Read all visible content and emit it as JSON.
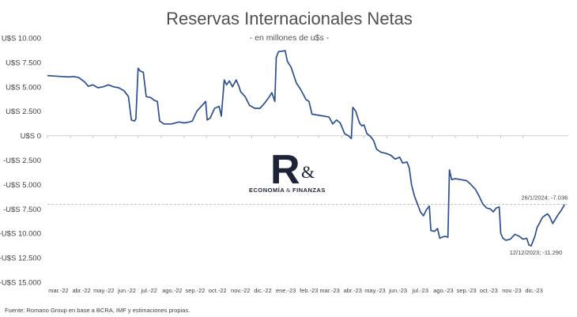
{
  "chart_data": {
    "type": "line",
    "title": "Reservas Internacionales Netas",
    "subtitle": "- en millones de u$s -",
    "xlabel": "",
    "ylabel": "",
    "ylim": [
      -15000,
      10000
    ],
    "y_ticks": [
      10000,
      7500,
      5000,
      2500,
      0,
      -2500,
      -5000,
      -7500,
      -10000,
      -12500,
      -15000
    ],
    "y_tick_labels": [
      "U$S 10.000",
      "U$S 7.500",
      "U$S 5.000",
      "U$S 2.500",
      "U$S 0",
      "-U$S 2.500",
      "-U$S 5.000",
      "-U$S 7.500",
      "-U$S 10.000",
      "-U$S 12.500",
      "-U$S 15.000"
    ],
    "x_range": [
      "2022-03-01",
      "2024-01-31"
    ],
    "x_tick_dates": [
      "2022-03-01",
      "2022-04-01",
      "2022-05-01",
      "2022-06-01",
      "2022-07-01",
      "2022-08-01",
      "2022-09-01",
      "2022-10-01",
      "2022-11-01",
      "2022-12-01",
      "2023-01-01",
      "2023-02-01",
      "2023-03-01",
      "2023-04-01",
      "2023-05-01",
      "2023-06-01",
      "2023-07-01",
      "2023-08-01",
      "2023-09-01",
      "2023-10-01",
      "2023-11-01",
      "2023-12-01"
    ],
    "x_tick_labels": [
      "mar.-22",
      "abr.-22",
      "may.-22",
      "jun.-22",
      "jul.-22",
      "ago.-22",
      "sep.-22",
      "oct.-22",
      "nov.-22",
      "dic.-22",
      "ene.-23",
      "feb.-23",
      "mar.-23",
      "abr.-23",
      "may.-23",
      "jun.-23",
      "jul.-23",
      "ago.-23",
      "sep.-23",
      "oct.-23",
      "nov.-23",
      "dic.-23"
    ],
    "grid": false,
    "series": [
      {
        "color": "#2b4f8f",
        "points": [
          [
            "2022-03-01",
            6150
          ],
          [
            "2022-03-10",
            6100
          ],
          [
            "2022-03-20",
            6050
          ],
          [
            "2022-03-30",
            6000
          ],
          [
            "2022-04-05",
            6050
          ],
          [
            "2022-04-12",
            5950
          ],
          [
            "2022-04-20",
            5500
          ],
          [
            "2022-04-25",
            5050
          ],
          [
            "2022-05-01",
            5200
          ],
          [
            "2022-05-08",
            4900
          ],
          [
            "2022-05-15",
            5000
          ],
          [
            "2022-05-22",
            5200
          ],
          [
            "2022-05-29",
            5000
          ],
          [
            "2022-06-05",
            4900
          ],
          [
            "2022-06-12",
            4600
          ],
          [
            "2022-06-18",
            4000
          ],
          [
            "2022-06-22",
            1600
          ],
          [
            "2022-06-26",
            1500
          ],
          [
            "2022-06-28",
            1700
          ],
          [
            "2022-07-01",
            6900
          ],
          [
            "2022-07-04",
            6600
          ],
          [
            "2022-07-08",
            6500
          ],
          [
            "2022-07-12",
            4000
          ],
          [
            "2022-07-18",
            3900
          ],
          [
            "2022-07-23",
            3600
          ],
          [
            "2022-07-27",
            3500
          ],
          [
            "2022-07-30",
            1500
          ],
          [
            "2022-08-05",
            1200
          ],
          [
            "2022-08-15",
            1200
          ],
          [
            "2022-08-25",
            1400
          ],
          [
            "2022-09-01",
            1300
          ],
          [
            "2022-09-08",
            1400
          ],
          [
            "2022-09-12",
            1500
          ],
          [
            "2022-09-18",
            2500
          ],
          [
            "2022-09-24",
            3000
          ],
          [
            "2022-09-30",
            3500
          ],
          [
            "2022-10-02",
            1600
          ],
          [
            "2022-10-06",
            1800
          ],
          [
            "2022-10-12",
            2800
          ],
          [
            "2022-10-18",
            3000
          ],
          [
            "2022-10-21",
            2000
          ],
          [
            "2022-10-25",
            5700
          ],
          [
            "2022-10-28",
            5200
          ],
          [
            "2022-11-01",
            5600
          ],
          [
            "2022-11-05",
            5000
          ],
          [
            "2022-11-10",
            5700
          ],
          [
            "2022-11-14",
            5000
          ],
          [
            "2022-11-16",
            4500
          ],
          [
            "2022-11-22",
            4000
          ],
          [
            "2022-11-28",
            3100
          ],
          [
            "2022-12-05",
            2800
          ],
          [
            "2022-12-12",
            2800
          ],
          [
            "2022-12-18",
            3300
          ],
          [
            "2022-12-24",
            3900
          ],
          [
            "2022-12-28",
            4400
          ],
          [
            "2023-01-01",
            3500
          ],
          [
            "2023-01-03",
            8000
          ],
          [
            "2023-01-06",
            8600
          ],
          [
            "2023-01-15",
            8700
          ],
          [
            "2023-01-18",
            7600
          ],
          [
            "2023-01-23",
            7000
          ],
          [
            "2023-01-30",
            5400
          ],
          [
            "2023-02-05",
            4700
          ],
          [
            "2023-02-12",
            3700
          ],
          [
            "2023-02-16",
            3500
          ],
          [
            "2023-02-20",
            2200
          ],
          [
            "2023-02-28",
            2100
          ],
          [
            "2023-03-08",
            2000
          ],
          [
            "2023-03-15",
            1900
          ],
          [
            "2023-03-20",
            1200
          ],
          [
            "2023-03-25",
            1600
          ],
          [
            "2023-03-30",
            1300
          ],
          [
            "2023-04-05",
            200
          ],
          [
            "2023-04-10",
            0
          ],
          [
            "2023-04-14",
            -300
          ],
          [
            "2023-04-16",
            2900
          ],
          [
            "2023-04-20",
            2500
          ],
          [
            "2023-04-25",
            1300
          ],
          [
            "2023-04-28",
            1000
          ],
          [
            "2023-05-01",
            1100
          ],
          [
            "2023-05-05",
            200
          ],
          [
            "2023-05-10",
            -100
          ],
          [
            "2023-05-14",
            -500
          ],
          [
            "2023-05-18",
            -1400
          ],
          [
            "2023-05-24",
            -1700
          ],
          [
            "2023-05-30",
            -1800
          ],
          [
            "2023-06-06",
            -2000
          ],
          [
            "2023-06-12",
            -2400
          ],
          [
            "2023-06-18",
            -2200
          ],
          [
            "2023-06-22",
            -2800
          ],
          [
            "2023-06-28",
            -2700
          ],
          [
            "2023-07-01",
            -3300
          ],
          [
            "2023-07-04",
            -5000
          ],
          [
            "2023-07-08",
            -6200
          ],
          [
            "2023-07-12",
            -7000
          ],
          [
            "2023-07-16",
            -7800
          ],
          [
            "2023-07-20",
            -8200
          ],
          [
            "2023-07-24",
            -7600
          ],
          [
            "2023-07-28",
            -7200
          ],
          [
            "2023-07-30",
            -9700
          ],
          [
            "2023-08-04",
            -9800
          ],
          [
            "2023-08-08",
            -9500
          ],
          [
            "2023-08-11",
            -10500
          ],
          [
            "2023-08-14",
            -10400
          ],
          [
            "2023-08-18",
            -10300
          ],
          [
            "2023-08-22",
            -10400
          ],
          [
            "2023-08-24",
            -3500
          ],
          [
            "2023-08-27",
            -4500
          ],
          [
            "2023-09-01",
            -4400
          ],
          [
            "2023-09-08",
            -4500
          ],
          [
            "2023-09-16",
            -4600
          ],
          [
            "2023-09-22",
            -5000
          ],
          [
            "2023-09-28",
            -5500
          ],
          [
            "2023-10-03",
            -6200
          ],
          [
            "2023-10-08",
            -7000
          ],
          [
            "2023-10-13",
            -7400
          ],
          [
            "2023-10-18",
            -7500
          ],
          [
            "2023-10-22",
            -7800
          ],
          [
            "2023-10-26",
            -7400
          ],
          [
            "2023-10-30",
            -7300
          ],
          [
            "2023-11-01",
            -10000
          ],
          [
            "2023-11-04",
            -10500
          ],
          [
            "2023-11-08",
            -10700
          ],
          [
            "2023-11-14",
            -10600
          ],
          [
            "2023-11-20",
            -10100
          ],
          [
            "2023-11-26",
            -10300
          ],
          [
            "2023-12-01",
            -10600
          ],
          [
            "2023-12-06",
            -10500
          ],
          [
            "2023-12-09",
            -11200
          ],
          [
            "2023-12-12",
            -11290
          ],
          [
            "2023-12-15",
            -10700
          ],
          [
            "2023-12-17",
            -10300
          ],
          [
            "2023-12-20",
            -9400
          ],
          [
            "2023-12-23",
            -9000
          ],
          [
            "2023-12-27",
            -8400
          ],
          [
            "2023-12-30",
            -8200
          ],
          [
            "2024-01-03",
            -8000
          ],
          [
            "2024-01-06",
            -8300
          ],
          [
            "2024-01-10",
            -9000
          ],
          [
            "2024-01-14",
            -8500
          ],
          [
            "2024-01-18",
            -8000
          ],
          [
            "2024-01-22",
            -7600
          ],
          [
            "2024-01-26",
            -7036
          ]
        ]
      }
    ],
    "reference_line": {
      "y": -7036,
      "style": "dashed",
      "color": "#bfbfbf"
    },
    "annotations": [
      {
        "text": "26/1/2024; -7.036",
        "x": "2024-01-26",
        "y": -7036
      },
      {
        "text": "12/12/2023; -11.290",
        "x": "2023-12-12",
        "y": -11290
      }
    ]
  },
  "logo": {
    "letter": "R",
    "ampersand": "&",
    "brand_left": "ECONOMÍA",
    "brand_amp": "&",
    "brand_right": "FINANZAS",
    "color": "#1c2436"
  },
  "footer": {
    "source": "Fuente: Romano Group en base a BCRA, IMF y estimaciones propias."
  }
}
